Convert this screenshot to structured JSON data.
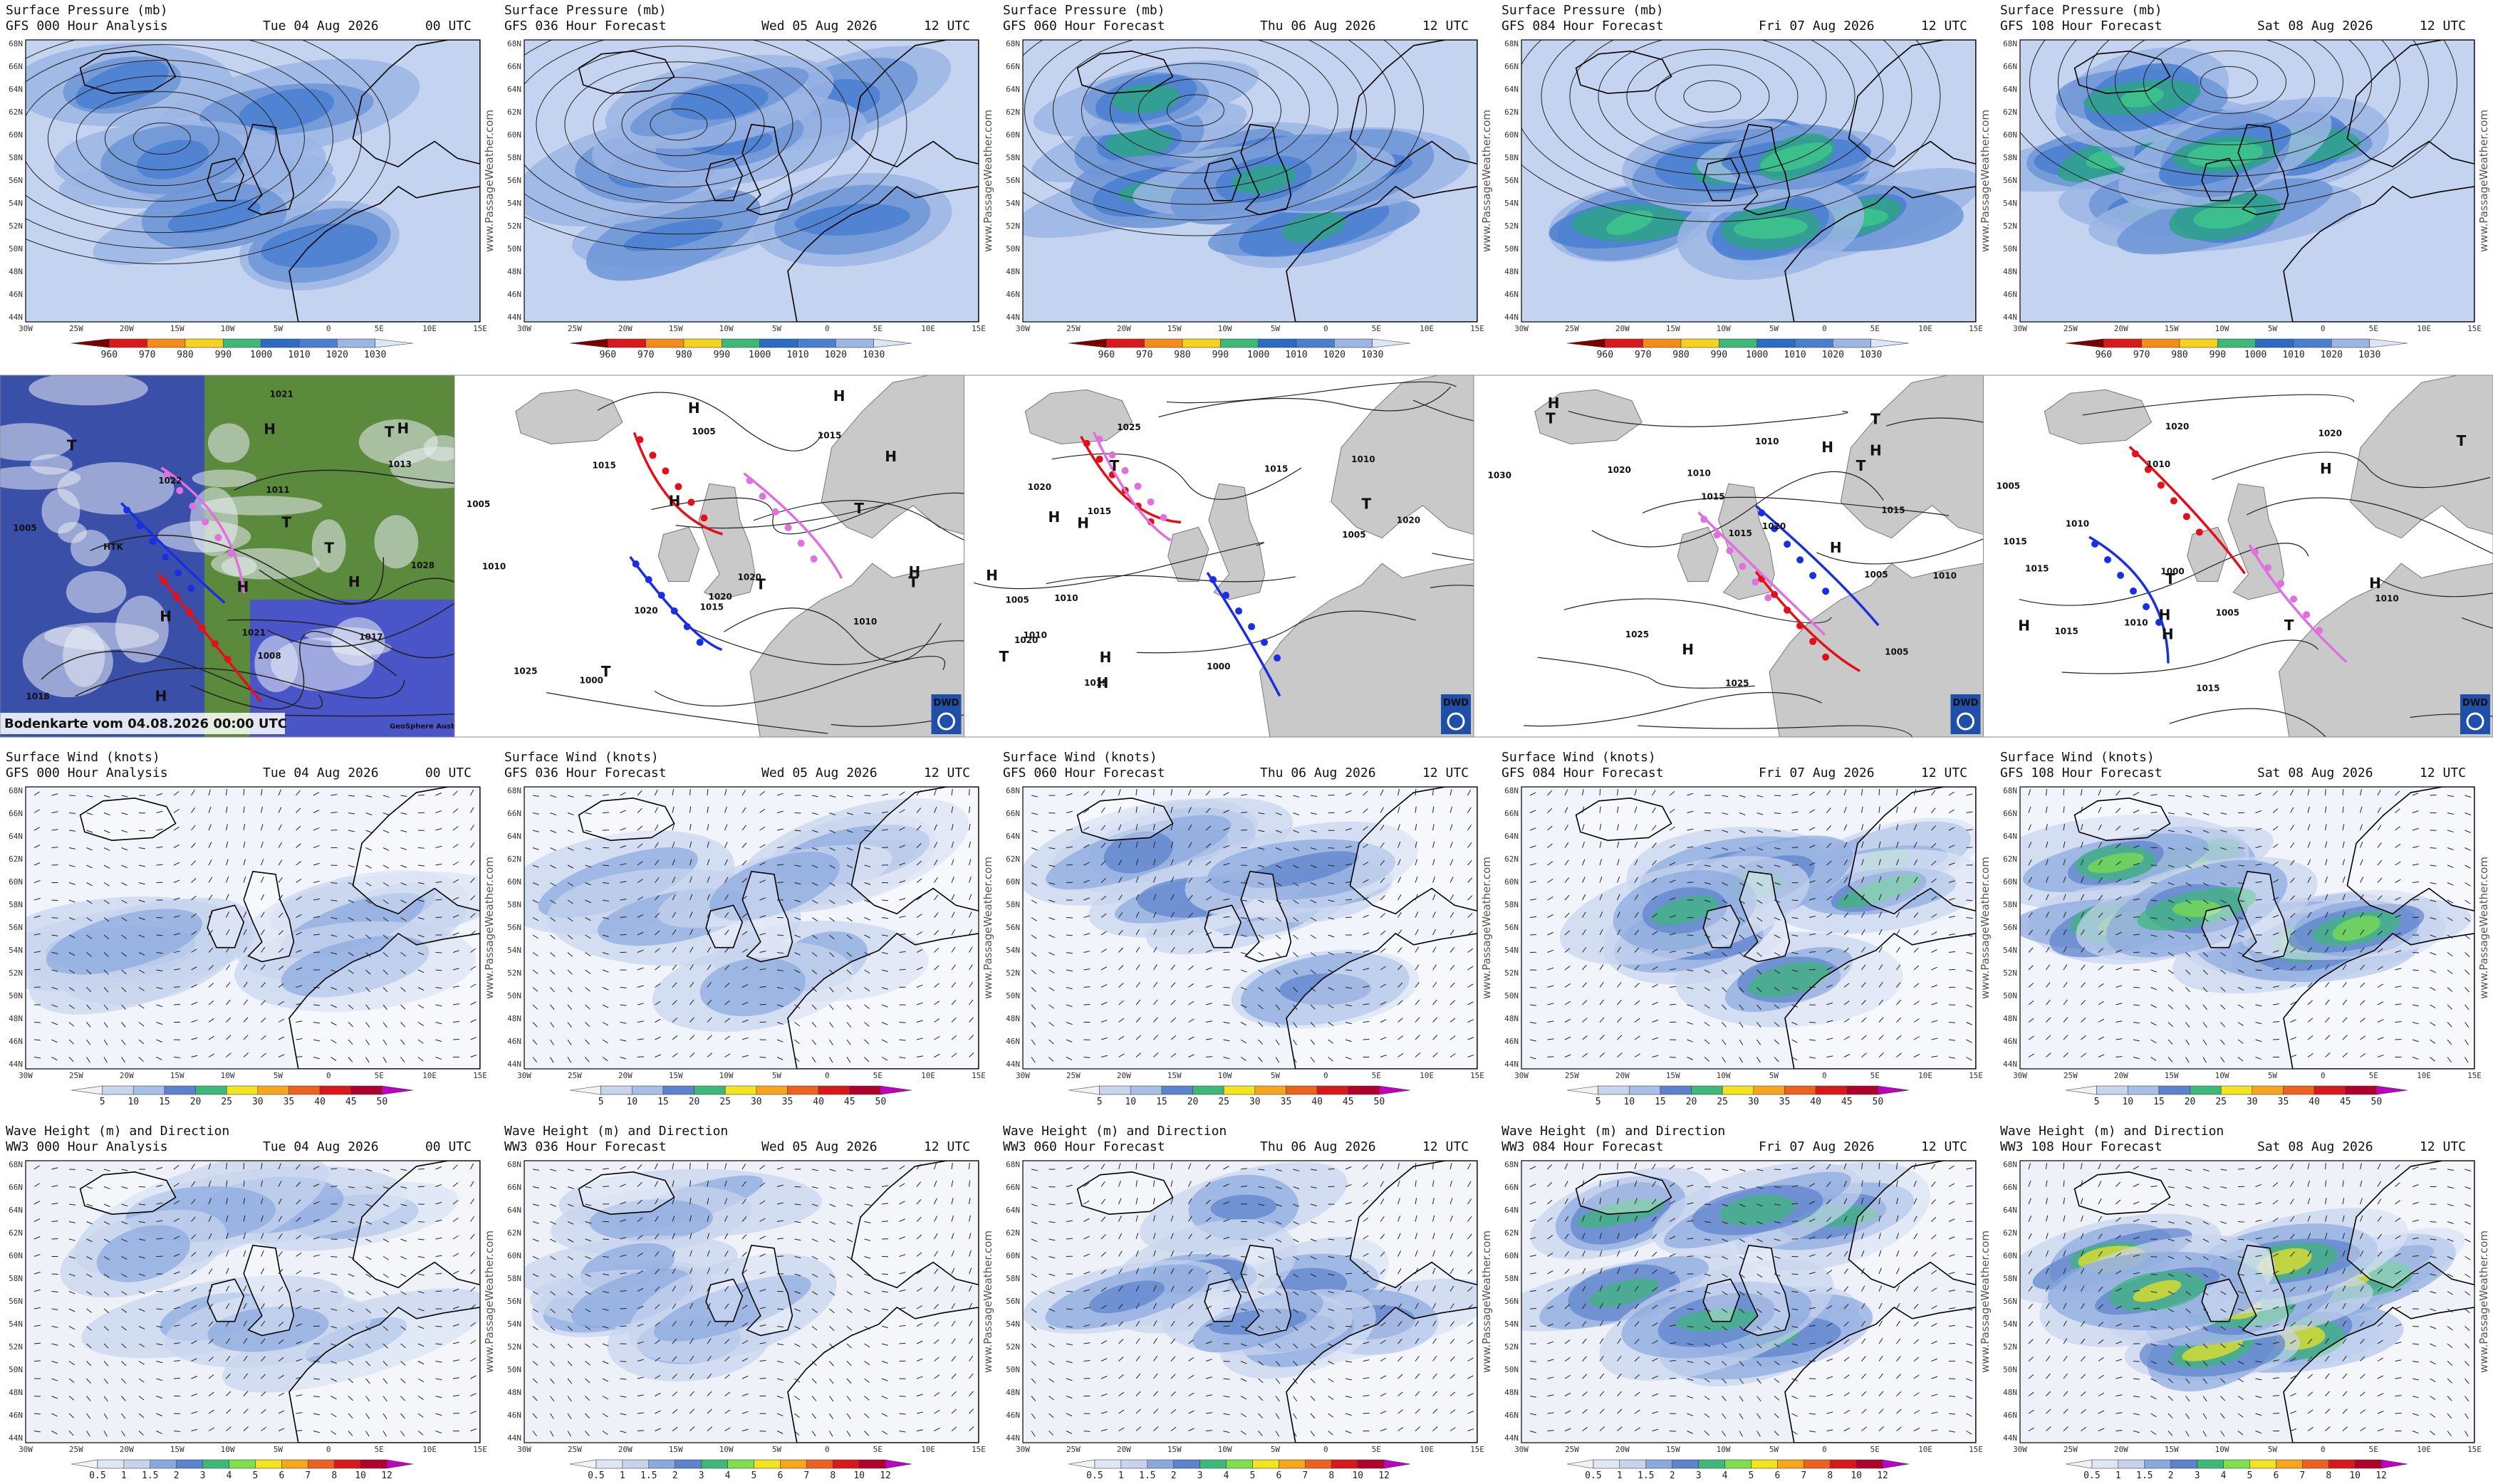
{
  "lat_labels": [
    "68N",
    "66N",
    "64N",
    "62N",
    "60N",
    "58N",
    "56N",
    "54N",
    "52N",
    "50N",
    "48N",
    "46N",
    "44N"
  ],
  "lon_labels": [
    "30W",
    "25W",
    "20W",
    "15W",
    "10W",
    "5W",
    "0",
    "5E",
    "10E",
    "15E"
  ],
  "watermark": "www.PassageWeather.com",
  "forecast_rows": [
    {
      "title": "Surface Pressure (mb)",
      "scale": [
        960,
        970,
        980,
        990,
        1000,
        1010,
        1020,
        1030
      ],
      "panels": [
        {
          "model": "GFS 000 Hour Analysis",
          "date": "Tue 04 Aug 2026",
          "time": "00 UTC"
        },
        {
          "model": "GFS 036 Hour Forecast",
          "date": "Wed 05 Aug 2026",
          "time": "12 UTC"
        },
        {
          "model": "GFS 060 Hour Forecast",
          "date": "Thu 06 Aug 2026",
          "time": "12 UTC"
        },
        {
          "model": "GFS 084 Hour Forecast",
          "date": "Fri 07 Aug 2026",
          "time": "12 UTC"
        },
        {
          "model": "GFS 108 Hour Forecast",
          "date": "Sat 08 Aug 2026",
          "time": "12 UTC"
        }
      ]
    },
    {
      "title": "Surface Wind (knots)",
      "scale": [
        5,
        10,
        15,
        20,
        25,
        30,
        35,
        40,
        45,
        50
      ],
      "panels": [
        {
          "model": "GFS 000 Hour Analysis",
          "date": "Tue 04 Aug 2026",
          "time": "00 UTC"
        },
        {
          "model": "GFS 036 Hour Forecast",
          "date": "Wed 05 Aug 2026",
          "time": "12 UTC"
        },
        {
          "model": "GFS 060 Hour Forecast",
          "date": "Thu 06 Aug 2026",
          "time": "12 UTC"
        },
        {
          "model": "GFS 084 Hour Forecast",
          "date": "Fri 07 Aug 2026",
          "time": "12 UTC"
        },
        {
          "model": "GFS 108 Hour Forecast",
          "date": "Sat 08 Aug 2026",
          "time": "12 UTC"
        }
      ]
    },
    {
      "title": "Wave Height (m) and Direction",
      "scale": [
        0.5,
        1,
        1.5,
        2,
        3,
        4,
        5,
        6,
        7,
        8,
        10,
        12
      ],
      "panels": [
        {
          "model": "WW3 000 Hour Analysis",
          "date": "Tue 04 Aug 2026",
          "time": "00 UTC"
        },
        {
          "model": "WW3 036 Hour Forecast",
          "date": "Wed 05 Aug 2026",
          "time": "12 UTC"
        },
        {
          "model": "WW3 060 Hour Forecast",
          "date": "Thu 06 Aug 2026",
          "time": "12 UTC"
        },
        {
          "model": "WW3 084 Hour Forecast",
          "date": "Fri 07 Aug 2026",
          "time": "12 UTC"
        },
        {
          "model": "WW3 108 Hour Forecast",
          "date": "Sat 08 Aug 2026",
          "time": "12 UTC"
        }
      ]
    }
  ],
  "analysis_row": {
    "caption": "Bodenkarte vom 04.08.2026 00:00 UTC",
    "credit": "GeoSphere Austria",
    "logo": "DWD",
    "panels": [
      {
        "labels": [
          "T",
          "1013",
          "H",
          "1028",
          "H",
          "1021",
          "H",
          "1022",
          "T",
          "1005",
          "H",
          "1021",
          "T",
          "1011",
          "H",
          "1017",
          "H",
          "1018",
          "T",
          "1008",
          "HTK"
        ]
      },
      {
        "labels": [
          "1010",
          "1015",
          "H",
          "1025",
          "1020",
          "T",
          "1000",
          "1005",
          "T",
          "1015",
          "H",
          "1020",
          "T",
          "H",
          "1020",
          "1015",
          "H",
          "T",
          "H",
          "1010",
          "1005"
        ]
      },
      {
        "labels": [
          "1020",
          "1010",
          "H",
          "1025",
          "T",
          "1000",
          "1005",
          "1015",
          "H",
          "1020",
          "H",
          "1020",
          "T",
          "H",
          "1015",
          "1010",
          "1005",
          "H",
          "T",
          "1010",
          "1015"
        ]
      },
      {
        "labels": [
          "1030",
          "1025",
          "H",
          "1025",
          "T",
          "1005",
          "1010",
          "1015",
          "1020",
          "H",
          "T",
          "1010",
          "1015",
          "H",
          "T",
          "1020",
          "1015",
          "H",
          "1010",
          "H",
          "1005"
        ]
      },
      {
        "labels": [
          "1010",
          "1015",
          "H",
          "1005",
          "1000",
          "T",
          "1010",
          "1015",
          "H",
          "1020",
          "H",
          "T",
          "1010",
          "1015",
          "H",
          "1020",
          "T",
          "H",
          "1015",
          "1005",
          "1010"
        ]
      }
    ]
  }
}
